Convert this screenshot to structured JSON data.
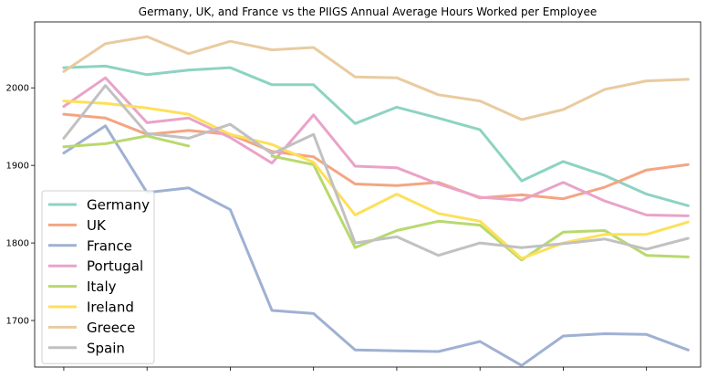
{
  "chart_data": {
    "type": "line",
    "title": "Germany, UK, and France vs the PIIGS Annual Average Hours Worked per Employee",
    "xlabel": "",
    "ylabel": "",
    "x": [
      0,
      1,
      2,
      3,
      4,
      5,
      6,
      7,
      8,
      9,
      10,
      11,
      12,
      13,
      14,
      15
    ],
    "xticks": [
      0,
      2,
      4,
      6,
      8,
      10,
      12,
      14
    ],
    "xlim": [
      -0.7,
      15.3
    ],
    "ylim": [
      1640,
      2085
    ],
    "yticks": [
      1700,
      1800,
      1900,
      2000
    ],
    "grid": false,
    "legend_position": "lower-left",
    "series": [
      {
        "name": "Germany",
        "color": "#8dd3c1",
        "values": [
          2026,
          2028,
          2017,
          2023,
          2026,
          2004,
          2004,
          1954,
          1975,
          1961,
          1946,
          1880,
          1905,
          1887,
          1863,
          1848
        ]
      },
      {
        "name": "UK",
        "color": "#f4a582",
        "values": [
          1966,
          1961,
          1940,
          1945,
          1940,
          1918,
          1911,
          1876,
          1874,
          1878,
          1858,
          1862,
          1857,
          1872,
          1894,
          1901
        ]
      },
      {
        "name": "France",
        "color": "#9fb1d3",
        "values": [
          1916,
          1951,
          1865,
          1871,
          1843,
          1713,
          1709,
          1662,
          1661,
          1660,
          1673,
          1642,
          1680,
          1683,
          1682,
          1662
        ]
      },
      {
        "name": "Portugal",
        "color": "#e9a3c9",
        "values": [
          1976,
          2013,
          1955,
          1961,
          1936,
          1903,
          1965,
          1899,
          1897,
          1876,
          1859,
          1855,
          1878,
          1854,
          1836,
          1835
        ]
      },
      {
        "name": "Italy",
        "color": "#b8d96e",
        "values": [
          1924,
          1928,
          1938,
          1925,
          null,
          1912,
          1901,
          1794,
          1816,
          1828,
          1823,
          1778,
          1814,
          1816,
          1784,
          1782
        ]
      },
      {
        "name": "Ireland",
        "color": "#fde05a",
        "values": [
          1983,
          1980,
          1974,
          1966,
          1940,
          1927,
          1904,
          1836,
          1863,
          1838,
          1828,
          1780,
          1800,
          1811,
          1811,
          1827
        ]
      },
      {
        "name": "Greece",
        "color": "#e9cba0",
        "values": [
          2021,
          2057,
          2066,
          2044,
          2060,
          2049,
          2052,
          2014,
          2013,
          1991,
          1983,
          1959,
          1972,
          1998,
          2009,
          2011
        ]
      },
      {
        "name": "Spain",
        "color": "#c1c1c1",
        "values": [
          1935,
          2003,
          1941,
          1935,
          1953,
          1915,
          1940,
          1800,
          1808,
          1784,
          1800,
          1794,
          1799,
          1805,
          1792,
          1806
        ]
      }
    ]
  }
}
